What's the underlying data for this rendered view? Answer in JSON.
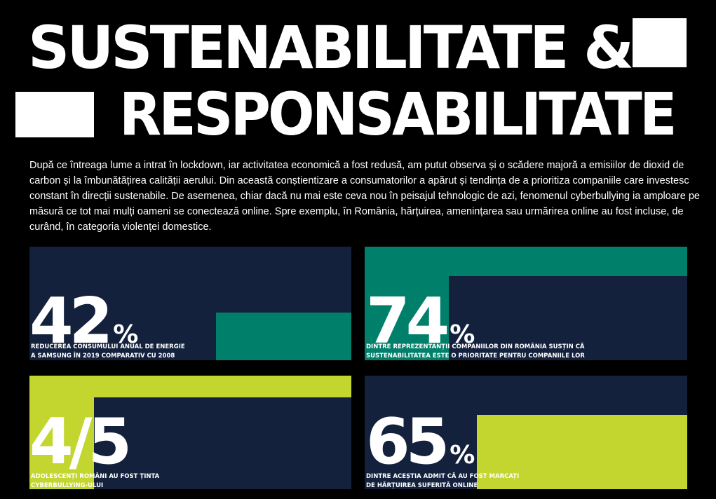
{
  "title": {
    "line1": "SUSTENABILITATE &",
    "line2": "RESPONSABILITATE"
  },
  "intro": "După ce întreaga lume a intrat în lockdown, iar activitatea economică a fost redusă, am putut observa și o scădere majoră a emisiilor de dioxid de carbon și la îmbunătățirea calității aerului. Din această conștientizare a consumatorilor a apărut și tendința de a prioritiza companiile care investesc constant în direcții sustenabile. De asemenea, chiar dacă nu mai este ceva nou în peisajul tehnologic de azi, fenomenul cyberbullying ia amploare pe măsură ce tot mai mulți oameni se conectează online. Spre exemplu, în România, hărțuirea, amenințarea sau urmărirea online au fost incluse, de curând, în categoria violenței domestice.",
  "colors": {
    "background": "#000000",
    "card": "#14213d",
    "green": "#00806a",
    "lime": "#c3d630",
    "text": "#ffffff"
  },
  "stats": [
    {
      "value": "42",
      "unit": "%",
      "level": 0.42,
      "caption1": "REDUCEREA CONSUMULUI ANUAL DE ENERGIE",
      "caption2": "A SAMSUNG ÎN 2019 COMPARATIV CU 2008"
    },
    {
      "value": "74",
      "unit": "%",
      "level": 0.74,
      "caption1": "DINTRE REPREZENTANȚII COMPANIILOR DIN ROMÂNIA SUSȚIN CĂ",
      "caption2": "SUSTENABILITATEA ESTE O PRIORITATE PENTRU COMPANIILE LOR"
    },
    {
      "value": "4/5",
      "unit": "",
      "level": 0.8,
      "caption1": "ADOLESCENȚI ROMÂNI AU FOST ȚINTA",
      "caption2": "CYBERBULLYING-ULUI"
    },
    {
      "value": "65",
      "unit": "%",
      "level": 0.65,
      "caption1": "DINTRE ACEȘTIA ADMIT CĂ AU FOST MARCAȚI",
      "caption2": "DE HĂRȚUIREA SUFERITĂ ONLINE"
    }
  ]
}
